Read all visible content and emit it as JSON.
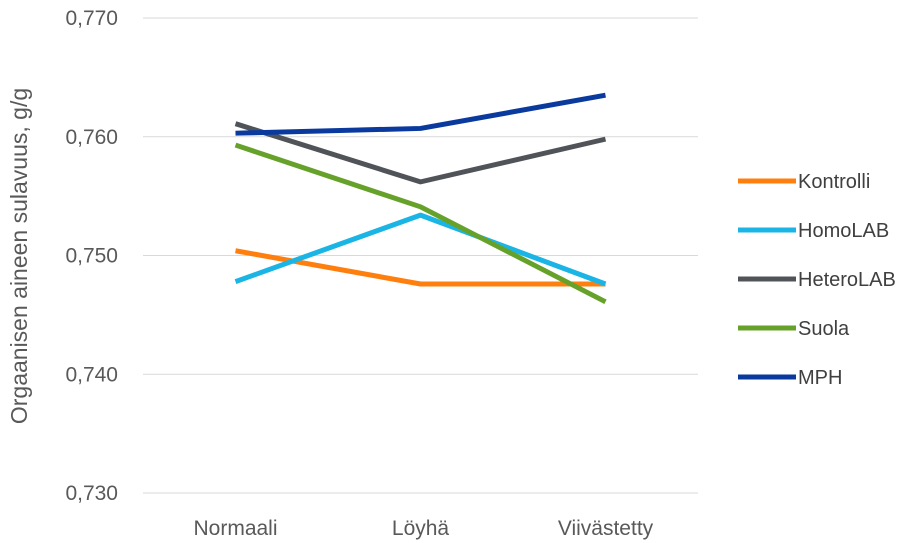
{
  "chart_data": {
    "type": "line",
    "title": "",
    "xlabel": "",
    "ylabel": "Orgaanisen aineen sulavuus, g/g",
    "categories": [
      "Normaali",
      "Löyhä",
      "Viivästetty"
    ],
    "ylim": [
      0.73,
      0.77
    ],
    "yticks": [
      "0,730",
      "0,740",
      "0,750",
      "0,760",
      "0,770"
    ],
    "grid": true,
    "legend_position": "right",
    "series": [
      {
        "name": "Kontrolli",
        "color": "#FF7F0E",
        "values": [
          0.7504,
          0.7476,
          0.7476
        ]
      },
      {
        "name": "HomoLAB",
        "color": "#1BB5E5",
        "values": [
          0.7478,
          0.7534,
          0.7476
        ]
      },
      {
        "name": "HeteroLAB",
        "color": "#505459",
        "values": [
          0.7611,
          0.7562,
          0.7598
        ]
      },
      {
        "name": "Suola",
        "color": "#66A22A",
        "values": [
          0.7593,
          0.7541,
          0.7461
        ]
      },
      {
        "name": "MPH",
        "color": "#0B3A9E",
        "values": [
          0.7603,
          0.7607,
          0.7635
        ]
      }
    ]
  }
}
